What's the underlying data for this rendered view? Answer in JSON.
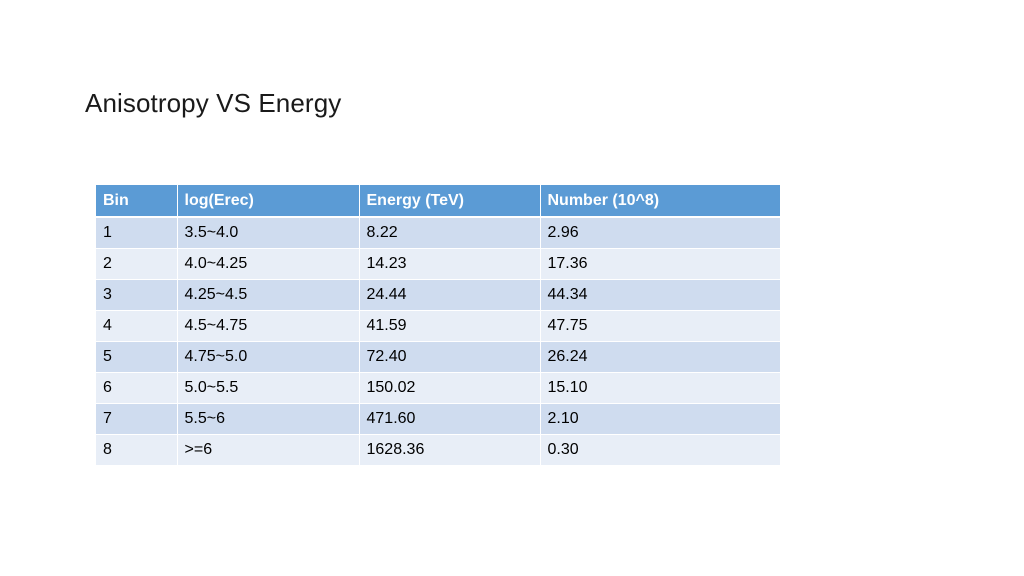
{
  "title": "Anisotropy VS Energy",
  "table": {
    "headers": [
      "Bin",
      "log(Erec)",
      "Energy (TeV)",
      "Number (10^8)"
    ],
    "rows": [
      [
        "1",
        "3.5~4.0",
        "8.22",
        "2.96"
      ],
      [
        "2",
        "4.0~4.25",
        "14.23",
        "17.36"
      ],
      [
        "3",
        "4.25~4.5",
        "24.44",
        "44.34"
      ],
      [
        "4",
        "4.5~4.75",
        "41.59",
        "47.75"
      ],
      [
        "5",
        "4.75~5.0",
        "72.40",
        "26.24"
      ],
      [
        "6",
        "5.0~5.5",
        "150.02",
        "15.10"
      ],
      [
        "7",
        "5.5~6",
        "471.60",
        "2.10"
      ],
      [
        "8",
        ">=6",
        "1628.36",
        "0.30"
      ]
    ]
  },
  "colors": {
    "header_background": "#5b9bd5",
    "row_odd_background": "#cfdcef",
    "row_even_background": "#e8eef7"
  }
}
